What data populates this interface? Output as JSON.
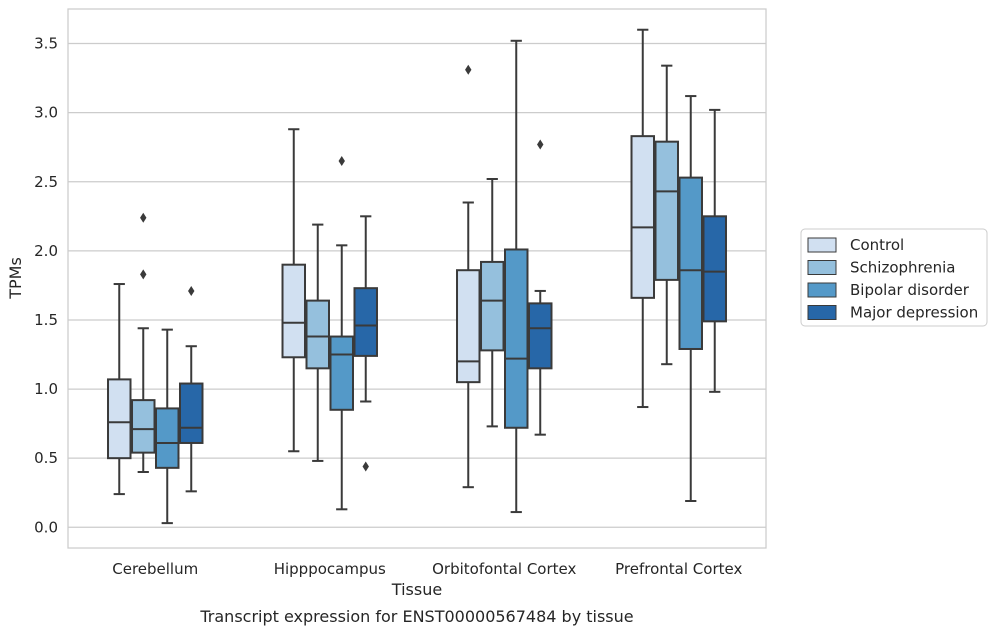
{
  "caption": "Transcript expression for ENST00000567484 by tissue",
  "chart_data": {
    "type": "box",
    "xlabel": "Tissue",
    "ylabel": "TPMs",
    "ylim": [
      -0.15,
      3.75
    ],
    "yticks": [
      "0.0",
      "0.5",
      "1.0",
      "1.5",
      "2.0",
      "2.5",
      "3.0",
      "3.5"
    ],
    "categories": [
      "Cerebellum",
      "Hipppocampus",
      "Orbitofontal Cortex",
      "Prefrontal Cortex"
    ],
    "grid": "horizontal",
    "legend_position": "right",
    "colors": [
      "#d1e0f1",
      "#95c0dd",
      "#5499c8",
      "#2767a8"
    ],
    "series": [
      {
        "name": "Control",
        "boxes": [
          {
            "whislo": 0.24,
            "q1": 0.5,
            "med": 0.76,
            "q3": 1.07,
            "whishi": 1.76,
            "fliers": []
          },
          {
            "whislo": 0.55,
            "q1": 1.23,
            "med": 1.48,
            "q3": 1.9,
            "whishi": 2.88,
            "fliers": []
          },
          {
            "whislo": 0.29,
            "q1": 1.05,
            "med": 1.2,
            "q3": 1.86,
            "whishi": 2.35,
            "fliers": [
              3.31
            ]
          },
          {
            "whislo": 0.87,
            "q1": 1.66,
            "med": 2.17,
            "q3": 2.83,
            "whishi": 3.6,
            "fliers": []
          }
        ]
      },
      {
        "name": "Schizophrenia",
        "boxes": [
          {
            "whislo": 0.4,
            "q1": 0.54,
            "med": 0.71,
            "q3": 0.92,
            "whishi": 1.44,
            "fliers": [
              2.24,
              1.83
            ]
          },
          {
            "whislo": 0.48,
            "q1": 1.15,
            "med": 1.38,
            "q3": 1.64,
            "whishi": 2.19,
            "fliers": []
          },
          {
            "whislo": 0.73,
            "q1": 1.28,
            "med": 1.64,
            "q3": 1.92,
            "whishi": 2.52,
            "fliers": []
          },
          {
            "whislo": 1.18,
            "q1": 1.79,
            "med": 2.43,
            "q3": 2.79,
            "whishi": 3.34,
            "fliers": []
          }
        ]
      },
      {
        "name": "Bipolar disorder",
        "boxes": [
          {
            "whislo": 0.03,
            "q1": 0.43,
            "med": 0.61,
            "q3": 0.86,
            "whishi": 1.43,
            "fliers": []
          },
          {
            "whislo": 0.13,
            "q1": 0.85,
            "med": 1.25,
            "q3": 1.38,
            "whishi": 2.04,
            "fliers": [
              2.65
            ]
          },
          {
            "whislo": 0.11,
            "q1": 0.72,
            "med": 1.22,
            "q3": 2.01,
            "whishi": 3.52,
            "fliers": []
          },
          {
            "whislo": 0.19,
            "q1": 1.29,
            "med": 1.86,
            "q3": 2.53,
            "whishi": 3.12,
            "fliers": []
          }
        ]
      },
      {
        "name": "Major depression",
        "boxes": [
          {
            "whislo": 0.26,
            "q1": 0.61,
            "med": 0.72,
            "q3": 1.04,
            "whishi": 1.31,
            "fliers": [
              1.71
            ]
          },
          {
            "whislo": 0.91,
            "q1": 1.24,
            "med": 1.46,
            "q3": 1.73,
            "whishi": 2.25,
            "fliers": [
              0.44
            ]
          },
          {
            "whislo": 0.67,
            "q1": 1.15,
            "med": 1.44,
            "q3": 1.62,
            "whishi": 1.71,
            "fliers": [
              2.77
            ]
          },
          {
            "whislo": 0.98,
            "q1": 1.49,
            "med": 1.85,
            "q3": 2.25,
            "whishi": 3.02,
            "fliers": []
          }
        ]
      }
    ]
  }
}
